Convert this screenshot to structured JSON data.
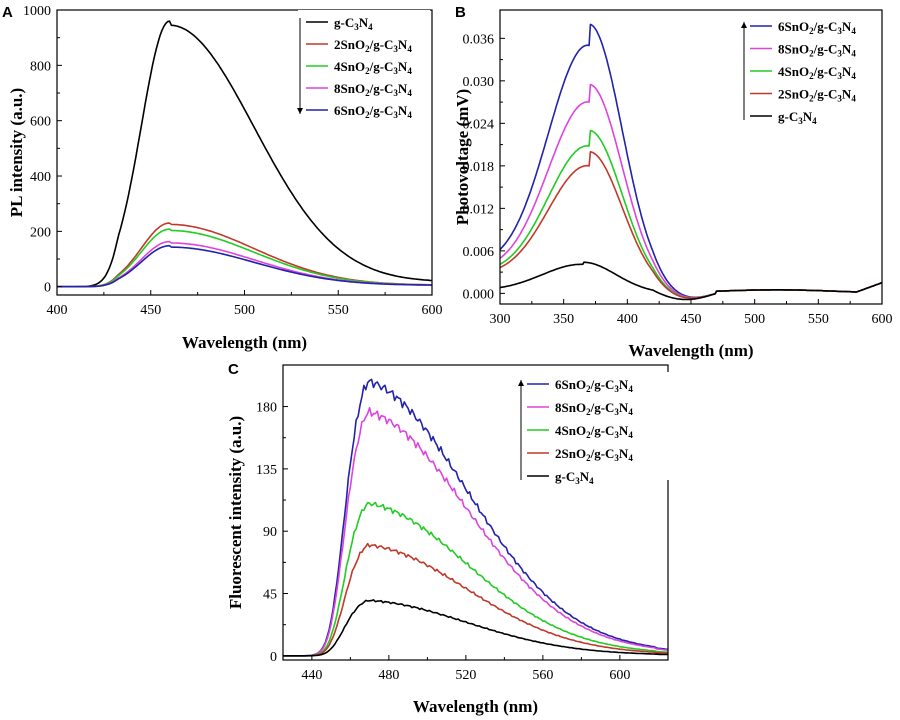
{
  "chart_data": [
    {
      "panel": "A",
      "type": "line",
      "xlabel": "Wavelength (nm)",
      "ylabel": "PL intensity (a.u.)",
      "xlim": [
        400,
        600
      ],
      "ylim": [
        -30,
        1000
      ],
      "xticks": [
        400,
        450,
        500,
        550,
        600
      ],
      "yticks": [
        0,
        200,
        400,
        600,
        800,
        1000
      ],
      "legend_position": "top-right",
      "legend_arrow": "down",
      "series": [
        {
          "name": "g-C3N4",
          "label_parts": [
            "g-C",
            "3",
            "N",
            "4"
          ],
          "color": "#000000",
          "peak_x": 460,
          "peak": 960,
          "floor": 0,
          "sigma_left": 15,
          "sigma_right": 45,
          "onset": 410,
          "tail_end": 15
        },
        {
          "name": "2SnO2/g-C3N4",
          "label_parts": [
            "2SnO",
            "2",
            "/g-C",
            "3",
            "N",
            "4"
          ],
          "color": "#c0392b",
          "peak_x": 460,
          "peak": 230,
          "floor": 0,
          "sigma_left": 15,
          "sigma_right": 45,
          "onset": 410,
          "tail_end": 5
        },
        {
          "name": "4SnO2/g-C3N4",
          "label_parts": [
            "4SnO",
            "2",
            "/g-C",
            "3",
            "N",
            "4"
          ],
          "color": "#22cc22",
          "peak_x": 460,
          "peak": 208,
          "floor": 0,
          "sigma_left": 15,
          "sigma_right": 45,
          "onset": 410,
          "tail_end": 5
        },
        {
          "name": "8SnO2/g-C3N4",
          "label_parts": [
            "8SnO",
            "2",
            "/g-C",
            "3",
            "N",
            "4"
          ],
          "color": "#dd44dd",
          "peak_x": 460,
          "peak": 163,
          "floor": 0,
          "sigma_left": 15,
          "sigma_right": 45,
          "onset": 410,
          "tail_end": 5
        },
        {
          "name": "6SnO2/g-C3N4",
          "label_parts": [
            "6SnO",
            "2",
            "/g-C",
            "3",
            "N",
            "4"
          ],
          "color": "#2222aa",
          "peak_x": 460,
          "peak": 148,
          "floor": 0,
          "sigma_left": 15,
          "sigma_right": 45,
          "onset": 410,
          "tail_end": 5
        }
      ]
    },
    {
      "panel": "B",
      "type": "line",
      "xlabel": "Wavelength (nm)",
      "ylabel": "Photovoltage (mV)",
      "xlim": [
        300,
        600
      ],
      "ylim": [
        -0.0015,
        0.04
      ],
      "xticks": [
        300,
        350,
        400,
        450,
        500,
        550,
        600
      ],
      "yticks": [
        0.0,
        0.006,
        0.012,
        0.018,
        0.024,
        0.03,
        0.036
      ],
      "ytick_labels": [
        "0.000",
        "0.006",
        "0.012",
        "0.018",
        "0.024",
        "0.030",
        "0.036"
      ],
      "legend_position": "top-right",
      "legend_arrow": "up",
      "series": [
        {
          "name": "6SnO2/g-C3N4",
          "label_parts": [
            "6SnO",
            "2",
            "/g-C",
            "3",
            "N",
            "4"
          ],
          "color": "#2222aa",
          "peak_x": 370,
          "peak": 0.038,
          "start": 0.003
        },
        {
          "name": "8SnO2/g-C3N4",
          "label_parts": [
            "8SnO",
            "2",
            "/g-C",
            "3",
            "N",
            "4"
          ],
          "color": "#dd44dd",
          "peak_x": 370,
          "peak": 0.0295,
          "start": 0.0025
        },
        {
          "name": "4SnO2/g-C3N4",
          "label_parts": [
            "4SnO",
            "2",
            "/g-C",
            "3",
            "N",
            "4"
          ],
          "color": "#22cc22",
          "peak_x": 370,
          "peak": 0.023,
          "start": 0.0022
        },
        {
          "name": "2SnO2/g-C3N4",
          "label_parts": [
            "2SnO",
            "2",
            "/g-C",
            "3",
            "N",
            "4"
          ],
          "color": "#c0392b",
          "peak_x": 370,
          "peak": 0.02,
          "start": 0.002
        },
        {
          "name": "g-C3N4",
          "label_parts": [
            "g-C",
            "3",
            "N",
            "4"
          ],
          "color": "#000000",
          "peak_x": 365,
          "peak": 0.0044,
          "start": 0.0003
        }
      ]
    },
    {
      "panel": "C",
      "type": "line",
      "xlabel": "Wavelength (nm)",
      "ylabel": "Fluorescent intensity (a.u.)",
      "xlim": [
        425,
        625
      ],
      "ylim": [
        -3,
        210
      ],
      "xticks": [
        440,
        480,
        520,
        560,
        600
      ],
      "yticks": [
        0,
        45,
        90,
        135,
        180
      ],
      "legend_position": "top-right",
      "legend_arrow": "up",
      "series": [
        {
          "name": "6SnO2/g-C3N4",
          "label_parts": [
            "6SnO",
            "2",
            "/g-C",
            "3",
            "N",
            "4"
          ],
          "color": "#2222aa",
          "peak_x": 470,
          "peak": 198
        },
        {
          "name": "8SnO2/g-C3N4",
          "label_parts": [
            "8SnO",
            "2",
            "/g-C",
            "3",
            "N",
            "4"
          ],
          "color": "#dd44dd",
          "peak_x": 470,
          "peak": 176
        },
        {
          "name": "4SnO2/g-C3N4",
          "label_parts": [
            "4SnO",
            "2",
            "/g-C",
            "3",
            "N",
            "4"
          ],
          "color": "#22cc22",
          "peak_x": 470,
          "peak": 110
        },
        {
          "name": "2SnO2/g-C3N4",
          "label_parts": [
            "2SnO",
            "2",
            "/g-C",
            "3",
            "N",
            "4"
          ],
          "color": "#c0392b",
          "peak_x": 470,
          "peak": 80
        },
        {
          "name": "g-C3N4",
          "label_parts": [
            "g-C",
            "3",
            "N",
            "4"
          ],
          "color": "#000000",
          "peak_x": 470,
          "peak": 40
        }
      ]
    }
  ]
}
